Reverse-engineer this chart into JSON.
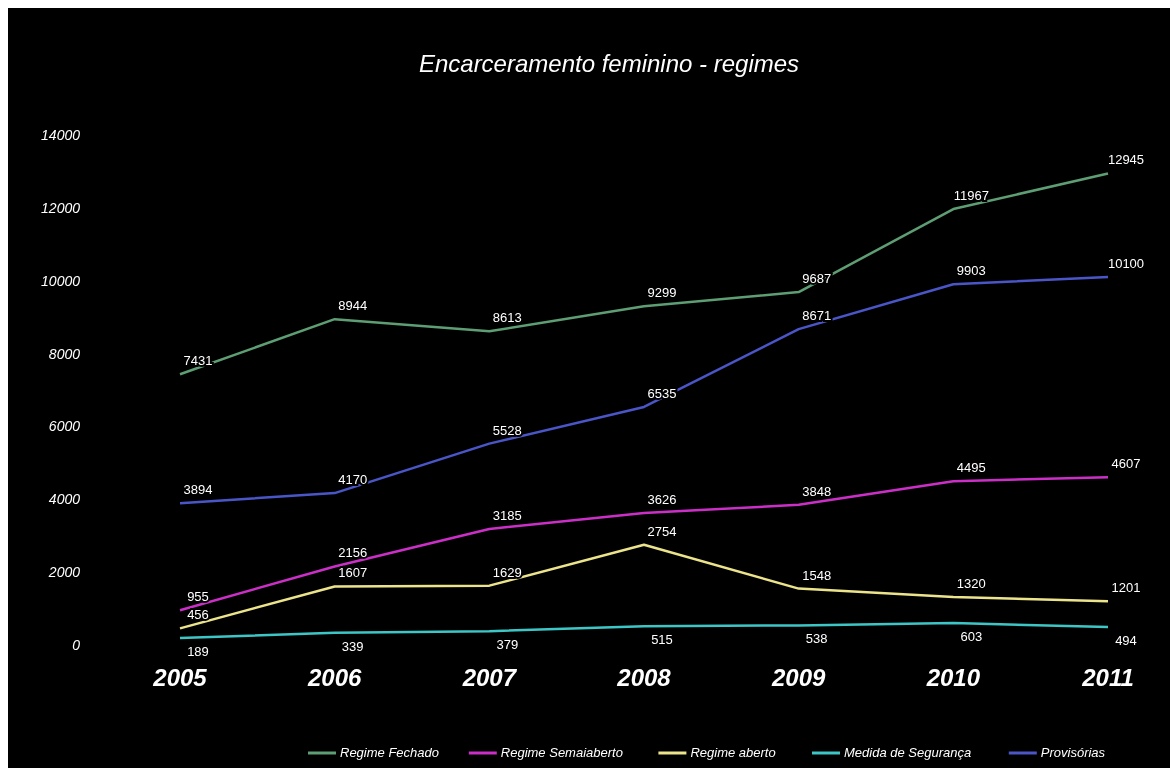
{
  "chart_data": {
    "type": "line",
    "title": "Encarceramento feminino - regimes",
    "categories": [
      "2005",
      "2006",
      "2007",
      "2008",
      "2009",
      "2010",
      "2011"
    ],
    "series": [
      {
        "name": "Regime Fechado",
        "color": "#5e9e74",
        "values": [
          7431,
          8944,
          8613,
          9299,
          9687,
          11967,
          12945
        ]
      },
      {
        "name": "Regime Semaiaberto",
        "color": "#cc2fc8",
        "values": [
          955,
          2156,
          3185,
          3626,
          3848,
          4495,
          4607
        ]
      },
      {
        "name": "Regime aberto",
        "color": "#ece48a",
        "values": [
          456,
          1607,
          1629,
          2754,
          1548,
          1320,
          1201
        ]
      },
      {
        "name": "Medida de Segurança",
        "color": "#3cc6c6",
        "values": [
          189,
          339,
          379,
          515,
          538,
          603,
          494
        ]
      },
      {
        "name": "Provisórias",
        "color": "#4a56c8",
        "values": [
          3894,
          4170,
          5528,
          6535,
          8671,
          9903,
          10100
        ]
      }
    ],
    "ylim": [
      0,
      14000
    ],
    "yticks": [
      0,
      2000,
      4000,
      6000,
      8000,
      10000,
      12000,
      14000
    ],
    "grid": false,
    "legend": "bottom",
    "data_labels": true,
    "marker": "none",
    "line_style": "solid"
  }
}
